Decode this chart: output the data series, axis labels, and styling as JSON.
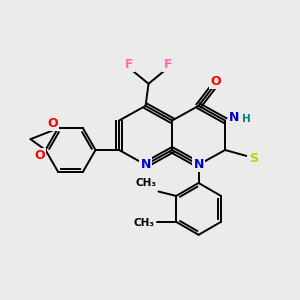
{
  "bg_color": "#ebebeb",
  "bond_color": "#000000",
  "bond_lw": 1.4,
  "atom_colors": {
    "N": "#0000cc",
    "O": "#ff0000",
    "F": "#ff69b4",
    "S": "#cccc00",
    "H": "#008080",
    "C": "#000000"
  },
  "font_size": 9,
  "font_size_small": 7.5
}
